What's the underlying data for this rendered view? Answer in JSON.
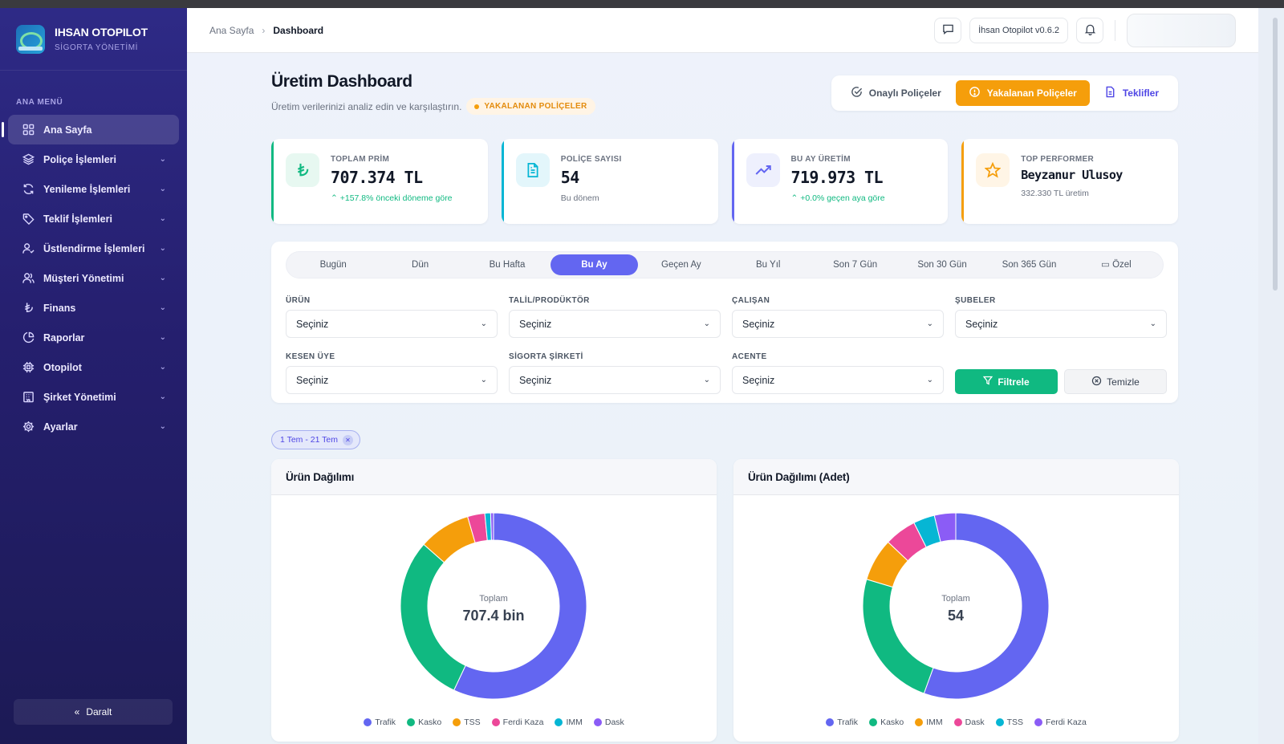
{
  "brand": {
    "title": "IHSAN OTOPILOT",
    "subtitle": "SİGORTA YÖNETİMİ"
  },
  "sidebar": {
    "heading": "ANA MENÜ",
    "items": [
      {
        "label": "Ana Sayfa",
        "icon": "grid-icon",
        "active": true
      },
      {
        "label": "Poliçe İşlemleri",
        "icon": "layers-icon"
      },
      {
        "label": "Yenileme İşlemleri",
        "icon": "refresh-icon"
      },
      {
        "label": "Teklif İşlemleri",
        "icon": "tag-icon"
      },
      {
        "label": "Üstlendirme İşlemleri",
        "icon": "user-check-icon"
      },
      {
        "label": "Müşteri Yönetimi",
        "icon": "users-icon"
      },
      {
        "label": "Finans",
        "icon": "lira-icon"
      },
      {
        "label": "Raporlar",
        "icon": "pie-icon"
      },
      {
        "label": "Otopilot",
        "icon": "cpu-icon"
      },
      {
        "label": "Şirket Yönetimi",
        "icon": "building-icon"
      },
      {
        "label": "Ayarlar",
        "icon": "gear-icon"
      }
    ],
    "collapse_label": "Daralt"
  },
  "topbar": {
    "breadcrumb_home": "Ana Sayfa",
    "breadcrumb_current": "Dashboard",
    "version": "İhsan Otopilot v0.6.2"
  },
  "header": {
    "title": "Üretim Dashboard",
    "subtitle": "Üretim verilerinizi analiz edin ve karşılaştırın.",
    "badge": "YAKALANAN POLİÇELER",
    "segments": [
      "Onaylı Poliçeler",
      "Yakalanan Poliçeler",
      "Teklifler"
    ]
  },
  "stats": [
    {
      "label": "TOPLAM PRİM",
      "value": "707.374 TL",
      "note": "+157.8% önceki döneme göre",
      "color": "#10b981"
    },
    {
      "label": "POLİÇE SAYISI",
      "value": "54",
      "note": "Bu dönem",
      "color": "#06b6d4"
    },
    {
      "label": "BU AY ÜRETİM",
      "value": "719.973 TL",
      "note": "+0.0% geçen aya göre",
      "color": "#6366f1"
    },
    {
      "label": "TOP PERFORMER",
      "value": "Beyzanur Ulusoy",
      "note": "332.330 TL üretim",
      "color": "#f59e0b"
    }
  ],
  "ranges": [
    "Bugün",
    "Dün",
    "Bu Hafta",
    "Bu Ay",
    "Geçen Ay",
    "Bu Yıl",
    "Son 7 Gün",
    "Son 30 Gün",
    "Son 365 Gün",
    "Özel"
  ],
  "active_range": "Bu Ay",
  "filters": [
    {
      "label": "ÜRÜN",
      "value": "Seçiniz"
    },
    {
      "label": "TALİL/PRODÜKTÖR",
      "value": "Seçiniz"
    },
    {
      "label": "ÇALIŞAN",
      "value": "Seçiniz"
    },
    {
      "label": "ŞUBELER",
      "value": "Seçiniz"
    },
    {
      "label": "KESEN ÜYE",
      "value": "Seçiniz"
    },
    {
      "label": "SİGORTA ŞİRKETİ",
      "value": "Seçiniz"
    },
    {
      "label": "ACENTE",
      "value": "Seçiniz"
    }
  ],
  "buttons": {
    "filter": "Filtrele",
    "clear": "Temizle"
  },
  "date_chip": "1 Tem - 21 Tem",
  "chart_data": [
    {
      "type": "pie",
      "title": "Ürün Dağılımı",
      "center_label": "Toplam",
      "center_value": "707.4 bin",
      "categories": [
        "Trafik",
        "Kasko",
        "TSS",
        "Ferdi Kaza",
        "IMM",
        "Dask"
      ],
      "values": [
        57.0,
        29.5,
        9.0,
        3.0,
        1.0,
        0.5
      ],
      "colors": [
        "#6366f1",
        "#10b981",
        "#f59e0b",
        "#ec4899",
        "#06b6d4",
        "#8b5cf6"
      ]
    },
    {
      "type": "pie",
      "title": "Ürün Dağılımı (Adet)",
      "center_label": "Toplam",
      "center_value": "54",
      "categories": [
        "Trafik",
        "Kasko",
        "IMM",
        "Dask",
        "TSS",
        "Ferdi Kaza"
      ],
      "values": [
        30,
        13,
        4,
        3,
        2,
        2
      ],
      "colors": [
        "#6366f1",
        "#10b981",
        "#f59e0b",
        "#ec4899",
        "#06b6d4",
        "#8b5cf6"
      ]
    }
  ]
}
